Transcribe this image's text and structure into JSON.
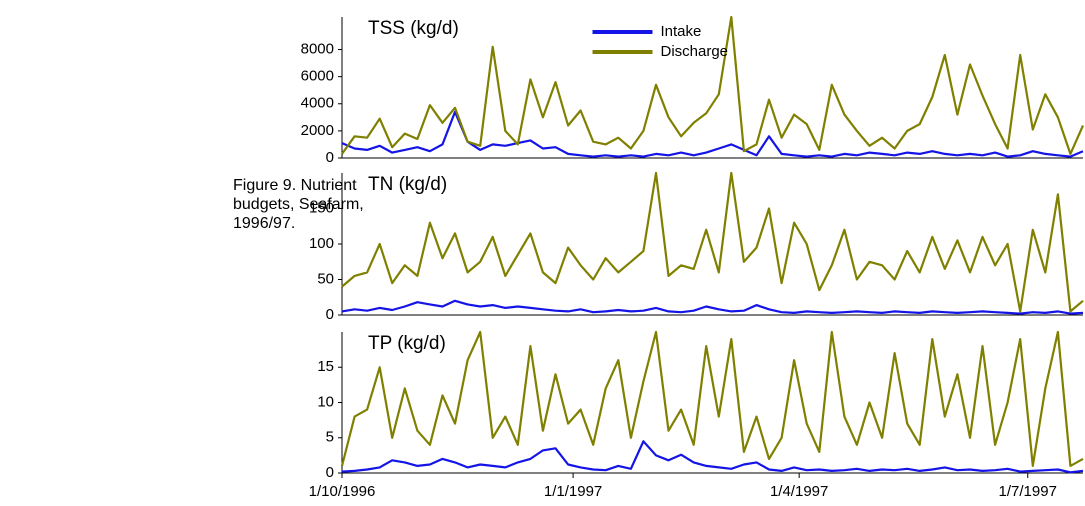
{
  "caption": "Figure 9. Nutrient budgets, Seafarm, 1996/97.",
  "chart_data": [
    {
      "type": "line",
      "title": "TSS (kg/d)",
      "legend": "upper center",
      "x": [
        "1/10/1996",
        "6/10/1996",
        "11/10/1996",
        "16/10/1996",
        "21/10/1996",
        "26/10/1996",
        "31/10/1996",
        "5/11/1996",
        "10/11/1996",
        "15/11/1996",
        "20/11/1996",
        "25/11/1996",
        "30/11/1996",
        "5/12/1996",
        "10/12/1996",
        "15/12/1996",
        "20/12/1996",
        "25/12/1996",
        "30/12/1996",
        "4/1/1997",
        "9/1/1997",
        "14/1/1997",
        "19/1/1997",
        "24/1/1997",
        "29/1/1997",
        "3/2/1997",
        "8/2/1997",
        "13/2/1997",
        "18/2/1997",
        "23/2/1997",
        "28/2/1997",
        "5/3/1997",
        "10/3/1997",
        "15/3/1997",
        "20/3/1997",
        "25/3/1997",
        "30/3/1997",
        "4/4/1997",
        "9/4/1997",
        "14/4/1997",
        "19/4/1997",
        "24/4/1997",
        "29/4/1997",
        "4/5/1997",
        "9/5/1997",
        "14/5/1997",
        "19/5/1997",
        "24/5/1997",
        "29/5/1997",
        "3/6/1997",
        "8/6/1997",
        "13/6/1997",
        "18/6/1997",
        "23/6/1997",
        "28/6/1997",
        "3/7/1997",
        "8/7/1997",
        "13/7/1997",
        "18/7/1997",
        "23/7/1997"
      ],
      "xlim": [
        "1/10/1996",
        "23/7/1997"
      ],
      "ylim": [
        0,
        10400
      ],
      "yticks": [
        0,
        2000,
        4000,
        6000,
        8000
      ],
      "series": [
        {
          "name": "Intake",
          "color": "#1414e6",
          "values": [
            1100,
            700,
            600,
            900,
            400,
            600,
            800,
            500,
            1000,
            3400,
            1200,
            600,
            1000,
            900,
            1100,
            1300,
            700,
            800,
            300,
            200,
            100,
            200,
            100,
            200,
            100,
            300,
            200,
            400,
            200,
            400,
            700,
            1000,
            600,
            200,
            1600,
            300,
            200,
            100,
            200,
            100,
            300,
            200,
            400,
            300,
            200,
            400,
            300,
            500,
            300,
            200,
            300,
            200,
            400,
            100,
            200,
            500,
            300,
            200,
            100,
            500
          ]
        },
        {
          "name": "Discharge",
          "color": "#808000",
          "values": [
            300,
            1600,
            1500,
            2900,
            800,
            1800,
            1400,
            3900,
            2600,
            3700,
            1200,
            900,
            8200,
            2000,
            1000,
            5800,
            3000,
            5600,
            2400,
            3500,
            1200,
            1000,
            1500,
            700,
            2000,
            5400,
            3000,
            1600,
            2600,
            3300,
            4700,
            10400,
            500,
            1000,
            4300,
            1500,
            3200,
            2500,
            600,
            5400,
            3200,
            2000,
            900,
            1500,
            700,
            2000,
            2500,
            4500,
            7600,
            3200,
            6900,
            4600,
            2500,
            700,
            7600,
            2100,
            4700,
            3000,
            300,
            2400
          ]
        }
      ]
    },
    {
      "type": "line",
      "title": "TN (kg/d)",
      "x": [
        "1/10/1996",
        "6/10/1996",
        "11/10/1996",
        "16/10/1996",
        "21/10/1996",
        "26/10/1996",
        "31/10/1996",
        "5/11/1996",
        "10/11/1996",
        "15/11/1996",
        "20/11/1996",
        "25/11/1996",
        "30/11/1996",
        "5/12/1996",
        "10/12/1996",
        "15/12/1996",
        "20/12/1996",
        "25/12/1996",
        "30/12/1996",
        "4/1/1997",
        "9/1/1997",
        "14/1/1997",
        "19/1/1997",
        "24/1/1997",
        "29/1/1997",
        "3/2/1997",
        "8/2/1997",
        "13/2/1997",
        "18/2/1997",
        "23/2/1997",
        "28/2/1997",
        "5/3/1997",
        "10/3/1997",
        "15/3/1997",
        "20/3/1997",
        "25/3/1997",
        "30/3/1997",
        "4/4/1997",
        "9/4/1997",
        "14/4/1997",
        "19/4/1997",
        "24/4/1997",
        "29/4/1997",
        "4/5/1997",
        "9/5/1997",
        "14/5/1997",
        "19/5/1997",
        "24/5/1997",
        "29/5/1997",
        "3/6/1997",
        "8/6/1997",
        "13/6/1997",
        "18/6/1997",
        "23/6/1997",
        "28/6/1997",
        "3/7/1997",
        "8/7/1997",
        "13/7/1997",
        "18/7/1997",
        "23/7/1997"
      ],
      "xlim": [
        "1/10/1996",
        "23/7/1997"
      ],
      "ylim": [
        0,
        200
      ],
      "yticks": [
        0,
        50,
        100,
        150
      ],
      "series": [
        {
          "color": "#1414e6",
          "values": [
            5,
            8,
            6,
            10,
            7,
            12,
            18,
            15,
            12,
            20,
            15,
            12,
            14,
            10,
            12,
            10,
            8,
            6,
            5,
            8,
            4,
            5,
            7,
            5,
            6,
            10,
            5,
            4,
            6,
            12,
            8,
            5,
            6,
            14,
            8,
            4,
            3,
            5,
            4,
            3,
            4,
            5,
            4,
            3,
            5,
            4,
            3,
            5,
            4,
            3,
            4,
            5,
            4,
            3,
            2,
            4,
            3,
            5,
            2,
            3
          ]
        },
        {
          "color": "#808000",
          "values": [
            40,
            55,
            60,
            100,
            45,
            70,
            55,
            130,
            80,
            115,
            60,
            75,
            110,
            55,
            85,
            115,
            60,
            45,
            95,
            70,
            50,
            80,
            60,
            75,
            90,
            200,
            55,
            70,
            65,
            120,
            60,
            200,
            75,
            95,
            150,
            45,
            130,
            100,
            35,
            70,
            120,
            50,
            75,
            70,
            50,
            90,
            60,
            110,
            65,
            105,
            60,
            110,
            70,
            100,
            5,
            120,
            60,
            170,
            5,
            20
          ]
        }
      ]
    },
    {
      "type": "line",
      "title": "TP (kg/d)",
      "x": [
        "1/10/1996",
        "6/10/1996",
        "11/10/1996",
        "16/10/1996",
        "21/10/1996",
        "26/10/1996",
        "31/10/1996",
        "5/11/1996",
        "10/11/1996",
        "15/11/1996",
        "20/11/1996",
        "25/11/1996",
        "30/11/1996",
        "5/12/1996",
        "10/12/1996",
        "15/12/1996",
        "20/12/1996",
        "25/12/1996",
        "30/12/1996",
        "4/1/1997",
        "9/1/1997",
        "14/1/1997",
        "19/1/1997",
        "24/1/1997",
        "29/1/1997",
        "3/2/1997",
        "8/2/1997",
        "13/2/1997",
        "18/2/1997",
        "23/2/1997",
        "28/2/1997",
        "5/3/1997",
        "10/3/1997",
        "15/3/1997",
        "20/3/1997",
        "25/3/1997",
        "30/3/1997",
        "4/4/1997",
        "9/4/1997",
        "14/4/1997",
        "19/4/1997",
        "24/4/1997",
        "29/4/1997",
        "4/5/1997",
        "9/5/1997",
        "14/5/1997",
        "19/5/1997",
        "24/5/1997",
        "29/5/1997",
        "3/6/1997",
        "8/6/1997",
        "13/6/1997",
        "18/6/1997",
        "23/6/1997",
        "28/6/1997",
        "3/7/1997",
        "8/7/1997",
        "13/7/1997",
        "18/7/1997",
        "23/7/1997"
      ],
      "xlim": [
        "1/10/1996",
        "23/7/1997"
      ],
      "xticks": [
        "1/10/1996",
        "1/1/1997",
        "1/4/1997",
        "1/7/1997"
      ],
      "ylim": [
        0,
        20
      ],
      "yticks": [
        0,
        5,
        10,
        15
      ],
      "series": [
        {
          "color": "#1414e6",
          "values": [
            0.2,
            0.3,
            0.5,
            0.8,
            1.8,
            1.5,
            1,
            1.2,
            2,
            1.5,
            0.8,
            1.2,
            1,
            0.8,
            1.5,
            2,
            3.2,
            3.5,
            1.2,
            0.8,
            0.5,
            0.4,
            1,
            0.6,
            4.5,
            2.5,
            1.8,
            2.6,
            1.5,
            1,
            0.8,
            0.6,
            1.2,
            1.5,
            0.5,
            0.3,
            0.8,
            0.4,
            0.5,
            0.3,
            0.4,
            0.6,
            0.3,
            0.5,
            0.4,
            0.6,
            0.3,
            0.5,
            0.8,
            0.4,
            0.5,
            0.3,
            0.4,
            0.6,
            0.2,
            0.3,
            0.4,
            0.5,
            0.1,
            0.3
          ]
        },
        {
          "color": "#808000",
          "values": [
            1,
            8,
            9,
            15,
            5,
            12,
            6,
            4,
            11,
            7,
            16,
            20,
            5,
            8,
            4,
            18,
            6,
            14,
            7,
            9,
            4,
            12,
            16,
            5,
            13,
            20,
            6,
            9,
            4,
            18,
            8,
            19,
            3,
            8,
            2,
            5,
            16,
            7,
            3,
            20,
            8,
            4,
            10,
            5,
            17,
            7,
            4,
            19,
            8,
            14,
            5,
            18,
            4,
            10,
            19,
            1,
            12,
            20,
            1,
            2
          ]
        }
      ]
    }
  ]
}
